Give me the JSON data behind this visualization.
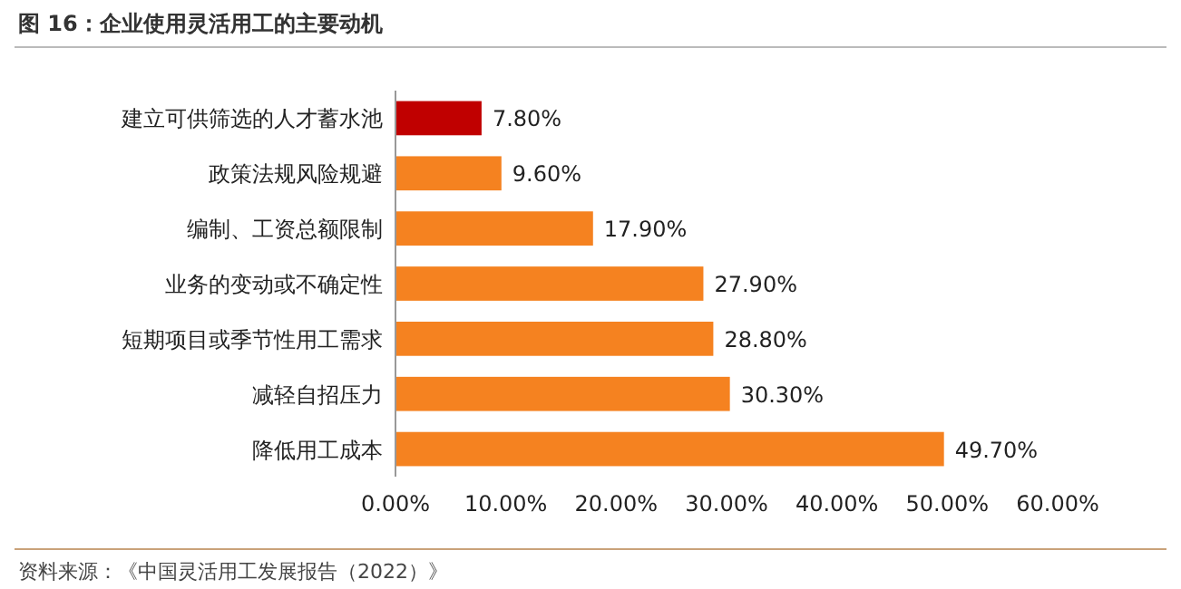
{
  "chart_data": {
    "type": "bar",
    "orientation": "horizontal",
    "title": "图 16：企业使用灵活用工的主要动机",
    "categories": [
      "建立可供筛选的人才蓄水池",
      "政策法规风险规避",
      "编制、工资总额限制",
      "业务的变动或不确定性",
      "短期项目或季节性用工需求",
      "减轻自招压力",
      "降低用工成本"
    ],
    "values": [
      7.8,
      9.6,
      17.9,
      27.9,
      28.8,
      30.3,
      49.7
    ],
    "value_labels": [
      "7.80%",
      "9.60%",
      "17.90%",
      "27.90%",
      "28.80%",
      "30.30%",
      "49.70%"
    ],
    "colors": [
      "#c00000",
      "#f58220",
      "#f58220",
      "#f58220",
      "#f58220",
      "#f58220",
      "#f58220"
    ],
    "xlim": [
      0,
      60
    ],
    "xticks": [
      {
        "value": 0,
        "label": "0.00%"
      },
      {
        "value": 10,
        "label": "10.00%"
      },
      {
        "value": 20,
        "label": "20.00%"
      },
      {
        "value": 30,
        "label": "30.00%"
      },
      {
        "value": 40,
        "label": "40.00%"
      },
      {
        "value": 50,
        "label": "50.00%"
      },
      {
        "value": 60,
        "label": "60.00%"
      }
    ],
    "annotations": [
      "资料来源：《中国灵活用工发展报告（2022）》"
    ]
  }
}
